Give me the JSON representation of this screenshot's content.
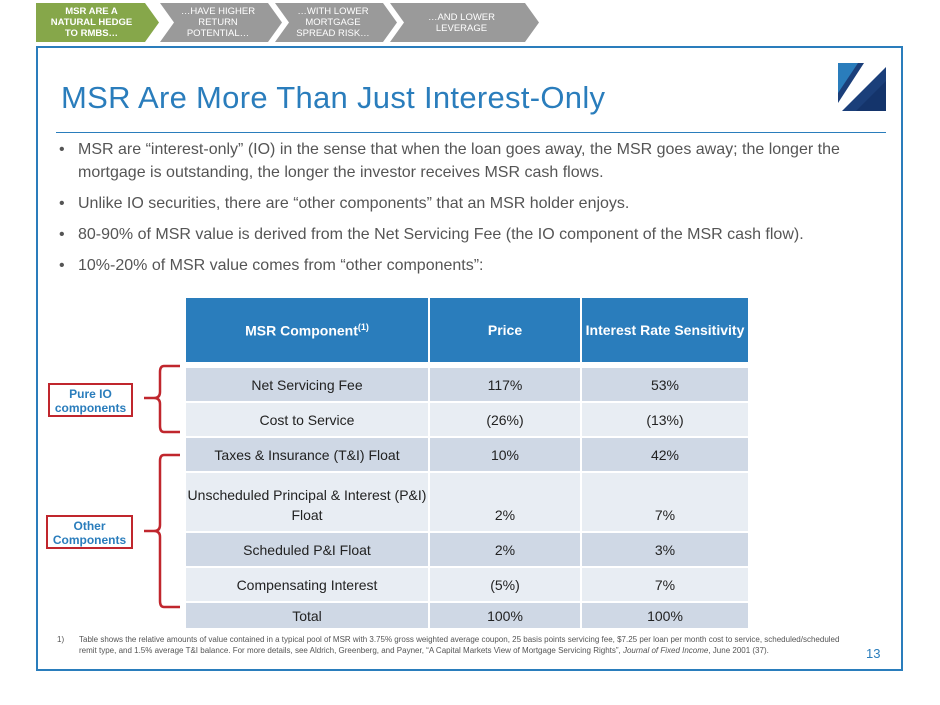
{
  "nav": {
    "steps": [
      {
        "label": "MSR ARE A NATURAL HEDGE TO RMBS…"
      },
      {
        "label": "…HAVE HIGHER RETURN POTENTIAL…"
      },
      {
        "label": "…WITH LOWER MORTGAGE SPREAD RISK…"
      },
      {
        "label": "…AND LOWER LEVERAGE"
      }
    ]
  },
  "title": "MSR Are More Than Just Interest-Only",
  "bullets": [
    "MSR are “interest-only” (IO) in the sense that when the loan goes away, the MSR goes away; the longer the mortgage is outstanding, the longer the investor receives MSR cash flows.",
    "Unlike IO securities, there are “other components” that an MSR holder enjoys.",
    "80-90% of MSR value is derived from the Net Servicing Fee (the IO component of the MSR cash flow).",
    "10%-20% of MSR value comes from “other components”:"
  ],
  "bullet_symbol": "•",
  "table": {
    "headers": {
      "component": "MSR Component",
      "component_sup": "(1)",
      "price": "Price",
      "sensitivity": "Interest Rate Sensitivity"
    },
    "rows": [
      {
        "component": "Net Servicing Fee",
        "price": "117%",
        "sensitivity": "53%"
      },
      {
        "component": "Cost to Service",
        "price": "(26%)",
        "sensitivity": "(13%)"
      },
      {
        "component": "Taxes & Insurance (T&I) Float",
        "price": "10%",
        "sensitivity": "42%"
      },
      {
        "component": "Unscheduled Principal & Interest (P&I) Float",
        "price": "2%",
        "sensitivity": "7%"
      },
      {
        "component": "Scheduled P&I Float",
        "price": "2%",
        "sensitivity": "3%"
      },
      {
        "component": "Compensating Interest",
        "price": "(5%)",
        "sensitivity": "7%"
      },
      {
        "component": "Total",
        "price": "100%",
        "sensitivity": "100%"
      }
    ]
  },
  "labels": {
    "pure_io": "Pure IO components",
    "other": "Other Components"
  },
  "footnote": {
    "number": "1)",
    "text_before": "Table shows the relative amounts of value contained in a typical pool of MSR with 3.75% gross weighted average coupon, 25 basis points servicing fee, $7.25 per loan per month cost to service, scheduled/scheduled remit type, and 1.5% average T&I balance.  For more details, see Aldrich, Greenberg, and Payner, “A Capital Markets View of Mortgage Servicing Rights”, ",
    "journal": "Journal of Fixed Income",
    "text_after": ", June 2001 (37)."
  },
  "page_number": "13",
  "colors": {
    "accent": "#2a7dbc",
    "nav_active": "#86a74a",
    "nav_inactive": "#9a9a9a",
    "bracket": "#c0262d"
  }
}
